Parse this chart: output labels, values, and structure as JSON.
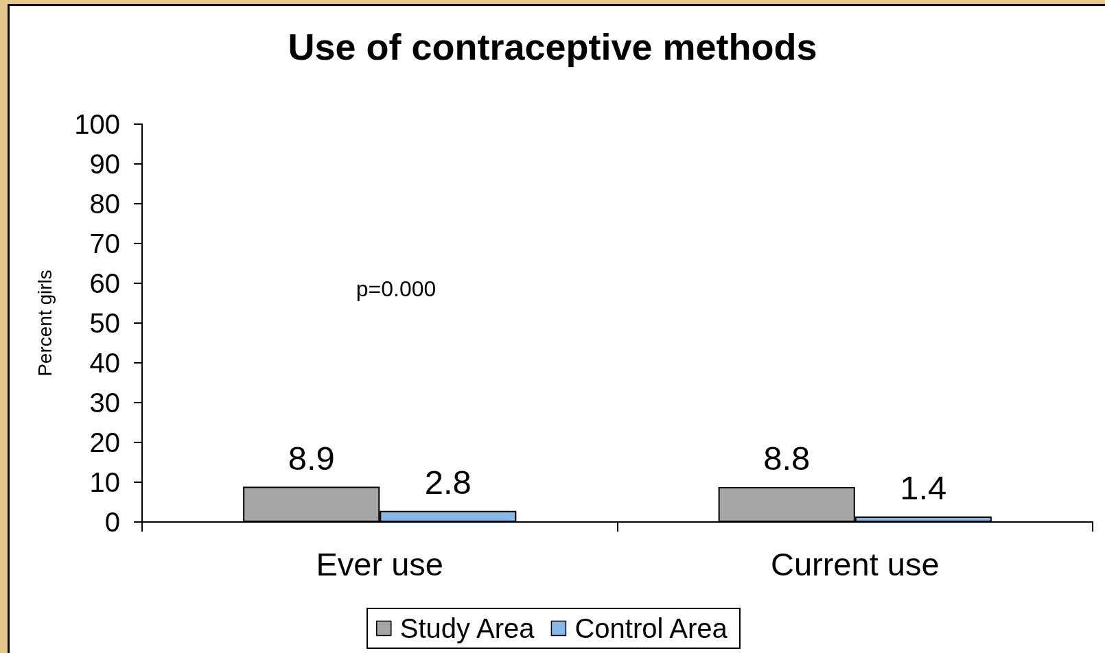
{
  "chart_data": {
    "type": "bar",
    "title": "Use of contraceptive methods",
    "ylabel": "Percent girls",
    "categories": [
      "Ever use",
      "Current use"
    ],
    "series": [
      {
        "name": "Study Area",
        "color": "#a6a6a6",
        "values": [
          8.9,
          8.8
        ]
      },
      {
        "name": "Control Area",
        "color": "#88b8e6",
        "values": [
          2.8,
          1.4
        ]
      }
    ],
    "ylim": [
      0,
      100
    ],
    "yticks": [
      0,
      10,
      20,
      30,
      40,
      50,
      60,
      70,
      80,
      90,
      100
    ],
    "data_labels": true,
    "legend": "bottom",
    "annotations": [
      "p=0.000"
    ]
  }
}
